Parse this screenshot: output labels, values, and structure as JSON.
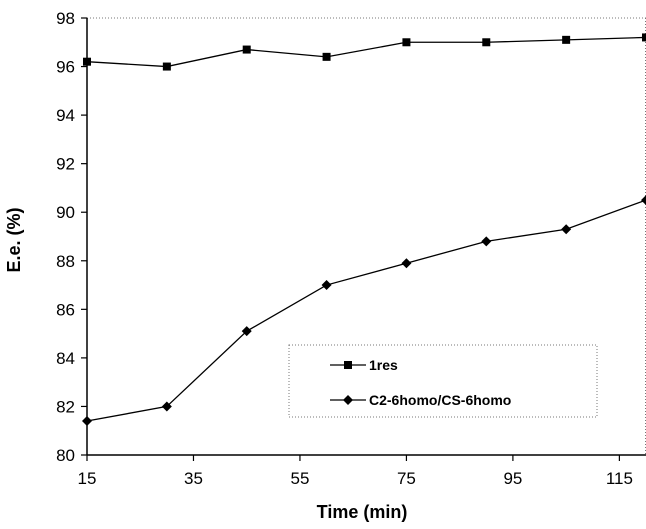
{
  "chart_data": {
    "type": "line",
    "title": "",
    "xlabel": "Time (min)",
    "ylabel": "E.e. (%)",
    "xlim": [
      15,
      120
    ],
    "ylim": [
      80,
      98
    ],
    "xticks": [
      15,
      35,
      55,
      75,
      95,
      115
    ],
    "yticks": [
      80,
      82,
      84,
      86,
      88,
      90,
      92,
      94,
      96,
      98
    ],
    "grid": false,
    "legend_position": "bottom-right",
    "series": [
      {
        "name": "1res",
        "marker": "square",
        "color": "#000000",
        "x": [
          15,
          30,
          45,
          60,
          75,
          90,
          105,
          120
        ],
        "y": [
          96.2,
          96.0,
          96.7,
          96.4,
          97.0,
          97.0,
          97.1,
          97.2
        ]
      },
      {
        "name": "C2-6homo/CS-6homo",
        "marker": "diamond",
        "color": "#000000",
        "x": [
          15,
          30,
          45,
          60,
          75,
          90,
          105,
          120
        ],
        "y": [
          81.4,
          82.0,
          85.1,
          87.0,
          87.9,
          88.8,
          89.3,
          90.5
        ]
      }
    ]
  }
}
